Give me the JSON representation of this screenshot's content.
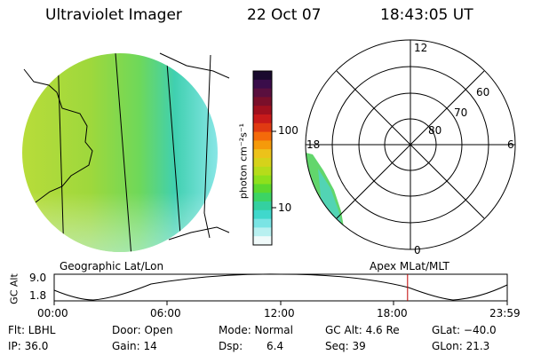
{
  "header": {
    "title": "Ultraviolet Imager",
    "date": "22 Oct 07",
    "time": "18:43:05 UT"
  },
  "colorbar": {
    "unit_label": "photon cm⁻²s⁻¹",
    "tick_labels": [
      "100",
      "10"
    ],
    "colors": [
      "#1a0a2e",
      "#3a0d4a",
      "#5a0f3e",
      "#7a0f2a",
      "#a0101e",
      "#c81a1a",
      "#e03a12",
      "#f46a0a",
      "#f59a0a",
      "#ecc21a",
      "#d6d21a",
      "#b6dc1a",
      "#8ee01c",
      "#5cd82e",
      "#3cd464",
      "#34d0a0",
      "#40d8cc",
      "#7ae4e4",
      "#b8f0f0",
      "#f0fafa"
    ]
  },
  "polar": {
    "mlt_labels": [
      "12",
      "18",
      "6",
      "0"
    ],
    "lat_labels": [
      "60",
      "70",
      "80"
    ]
  },
  "orbit": {
    "axis_label": "GC Alt",
    "y_ticks": [
      "9.0",
      "1.8"
    ],
    "left_caption": "Geographic Lat/Lon",
    "right_caption": "Apex MLat/MLT",
    "time_ticks": [
      "00:00",
      "06:00",
      "12:00",
      "18:00",
      "23:59"
    ],
    "current_time_hours": 18.72,
    "current_marker_color": "#c00000"
  },
  "status": {
    "flt": "Flt: LBHL",
    "door": "Door: Open",
    "mode": "Mode: Normal",
    "gc_alt": "GC Alt: 4.6 Re",
    "glat": "GLat: −40.0",
    "ip": "IP: 36.0",
    "gain": "Gain: 14",
    "dsp_label": "Dsp:",
    "dsp_value": "6.4",
    "seq": "Seq: 39",
    "glon": "GLon: 21.3"
  }
}
